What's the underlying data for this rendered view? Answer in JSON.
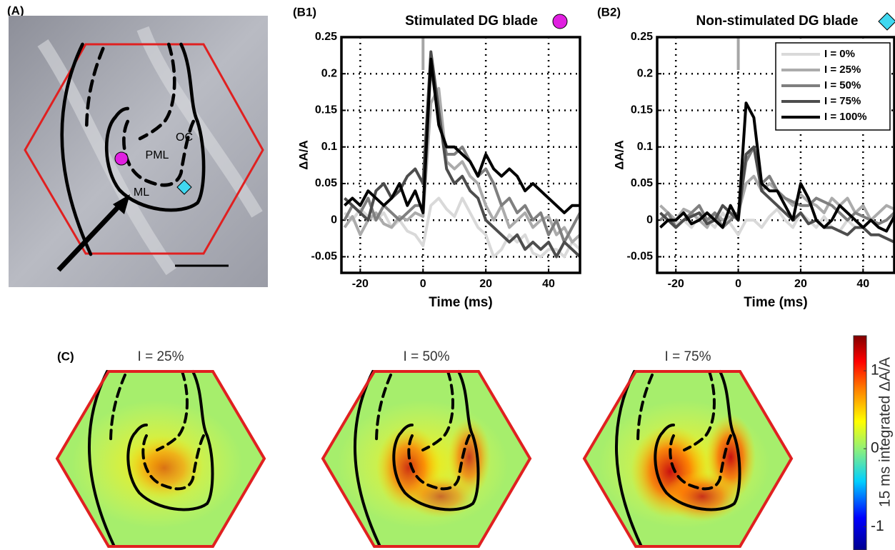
{
  "panel_a": {
    "label": "(A)",
    "annotations": [
      "OC",
      "PML",
      "ML"
    ]
  },
  "chart_data": [
    {
      "type": "line",
      "panel_label": "(B1)",
      "title": "Stimulated DG blade",
      "xlabel": "Time (ms)",
      "ylabel": "ΔA/A",
      "x": [
        -25,
        -22.5,
        -20,
        -17.5,
        -15,
        -12.5,
        -10,
        -7.5,
        -5,
        -2.5,
        0,
        2.5,
        5,
        7.5,
        10,
        12.5,
        15,
        17.5,
        20,
        22.5,
        25,
        27.5,
        30,
        32.5,
        35,
        37.5,
        40,
        42.5,
        45,
        47.5,
        50
      ],
      "series": [
        {
          "color": "#d9d9d9",
          "values": [
            0.01,
            0.0,
            0.015,
            0.005,
            0.0,
            0.01,
            -0.01,
            0.0,
            -0.015,
            -0.02,
            -0.035,
            0.02,
            0.03,
            0.015,
            0.005,
            0.03,
            0.01,
            -0.01,
            -0.02,
            -0.05,
            -0.04,
            -0.02,
            -0.03,
            -0.02,
            -0.045,
            -0.05,
            -0.04,
            -0.04,
            -0.05,
            -0.03,
            -0.04
          ]
        },
        {
          "color": "#ababab",
          "values": [
            -0.01,
            0.005,
            -0.02,
            0.0,
            0.01,
            -0.005,
            -0.01,
            0.005,
            0.0,
            0.01,
            0.005,
            0.16,
            0.18,
            0.08,
            0.07,
            0.08,
            0.06,
            0.05,
            0.02,
            0.0,
            0.02,
            -0.01,
            0.0,
            0.01,
            -0.01,
            0.0,
            0.005,
            -0.02,
            -0.01,
            -0.03,
            -0.02
          ]
        },
        {
          "color": "#7f7f7f",
          "values": [
            0.0,
            0.02,
            0.01,
            0.03,
            0.0,
            0.02,
            0.01,
            0.0,
            0.01,
            0.02,
            0.02,
            0.21,
            0.14,
            0.09,
            0.09,
            0.1,
            0.08,
            0.06,
            0.07,
            0.05,
            0.02,
            0.03,
            0.01,
            0.02,
            0.0,
            0.01,
            -0.02,
            0.0,
            -0.03,
            -0.01,
            0.01
          ]
        },
        {
          "color": "#4d4d4d",
          "values": [
            0.03,
            0.02,
            0.01,
            0.0,
            0.04,
            0.05,
            0.03,
            0.04,
            0.06,
            0.07,
            0.05,
            0.23,
            0.15,
            0.07,
            0.05,
            0.06,
            0.04,
            0.03,
            0.0,
            -0.01,
            -0.02,
            -0.03,
            -0.02,
            -0.04,
            -0.03,
            -0.04,
            -0.03,
            -0.05,
            -0.03,
            -0.04,
            -0.05
          ]
        },
        {
          "color": "#000000",
          "values": [
            0.02,
            0.03,
            0.02,
            0.04,
            0.03,
            0.02,
            0.03,
            0.05,
            0.02,
            0.04,
            0.01,
            0.22,
            0.13,
            0.1,
            0.1,
            0.09,
            0.08,
            0.06,
            0.09,
            0.07,
            0.06,
            0.07,
            0.06,
            0.04,
            0.05,
            0.04,
            0.03,
            0.02,
            0.01,
            0.02,
            0.02
          ]
        }
      ],
      "xlim": [
        -26,
        50
      ],
      "ylim": [
        -0.072,
        0.25
      ],
      "xticks": [
        -20,
        0,
        20,
        40
      ],
      "yticks": [
        -0.05,
        0,
        0.05,
        0.1,
        0.15,
        0.2,
        0.25
      ],
      "grid": true,
      "stimulus_x": 0,
      "legend": false
    },
    {
      "type": "line",
      "panel_label": "(B2)",
      "title": "Non-stimulated DG blade",
      "xlabel": "Time (ms)",
      "ylabel": "ΔA/A",
      "x": [
        -25,
        -22.5,
        -20,
        -17.5,
        -15,
        -12.5,
        -10,
        -7.5,
        -5,
        -2.5,
        0,
        2.5,
        5,
        7.5,
        10,
        12.5,
        15,
        17.5,
        20,
        22.5,
        25,
        27.5,
        30,
        32.5,
        35,
        37.5,
        40,
        42.5,
        45,
        47.5,
        50
      ],
      "series": [
        {
          "name": "I = 0%",
          "color": "#d9d9d9",
          "values": [
            0.0,
            0.01,
            -0.005,
            0.0,
            -0.01,
            0.005,
            0.0,
            -0.01,
            0.01,
            -0.005,
            -0.02,
            0.0,
            0.0,
            -0.01,
            0.005,
            0.015,
            0.0,
            -0.01,
            0.01,
            0.0,
            -0.01,
            0.005,
            -0.01,
            -0.015,
            0.0,
            -0.01,
            -0.01,
            0.0,
            -0.005,
            0.0,
            0.01
          ]
        },
        {
          "name": "I = 25%",
          "color": "#ababab",
          "values": [
            0.02,
            0.01,
            0.0,
            0.015,
            0.01,
            0.0,
            -0.01,
            0.01,
            0.0,
            0.005,
            0.01,
            0.05,
            0.06,
            0.04,
            0.05,
            0.04,
            0.03,
            0.02,
            0.035,
            0.025,
            0.02,
            0.01,
            0.03,
            0.02,
            0.03,
            0.01,
            0.02,
            0.0,
            0.01,
            0.02,
            0.015
          ]
        },
        {
          "name": "I = 50%",
          "color": "#7f7f7f",
          "values": [
            0.0,
            0.01,
            -0.01,
            0.0,
            0.01,
            0.02,
            0.0,
            0.01,
            -0.01,
            0.0,
            0.01,
            0.08,
            0.1,
            0.05,
            0.06,
            0.04,
            0.03,
            0.025,
            0.02,
            0.02,
            0.03,
            0.025,
            0.02,
            0.01,
            0.0,
            0.01,
            0.005,
            0.0,
            -0.005,
            0.0,
            0.01
          ]
        },
        {
          "name": "I = 75%",
          "color": "#4d4d4d",
          "values": [
            0.01,
            0.0,
            -0.01,
            0.0,
            0.005,
            0.01,
            -0.005,
            0.0,
            0.02,
            0.01,
            0.0,
            0.09,
            0.1,
            0.04,
            0.03,
            0.02,
            0.01,
            0.0,
            0.01,
            -0.005,
            0.0,
            -0.01,
            -0.01,
            -0.015,
            -0.02,
            -0.01,
            -0.01,
            -0.02,
            -0.02,
            -0.025,
            -0.03
          ]
        },
        {
          "name": "I = 100%",
          "color": "#000000",
          "values": [
            -0.01,
            0.0,
            0.0,
            0.01,
            -0.005,
            0.0,
            0.01,
            0.0,
            -0.01,
            0.02,
            0.0,
            0.16,
            0.14,
            0.05,
            0.04,
            0.04,
            0.02,
            0.0,
            0.05,
            0.03,
            0.0,
            -0.01,
            0.0,
            0.02,
            0.01,
            0.0,
            -0.01,
            0.0,
            -0.01,
            -0.015,
            0.005
          ]
        }
      ],
      "xlim": [
        -26,
        50
      ],
      "ylim": [
        -0.072,
        0.25
      ],
      "xticks": [
        -20,
        0,
        20,
        40
      ],
      "yticks": [
        -0.05,
        0,
        0.05,
        0.1,
        0.15,
        0.2,
        0.25
      ],
      "grid": true,
      "stimulus_x": 0,
      "legend": "upper right"
    }
  ],
  "panel_c": {
    "label": "(C)",
    "titles": [
      "I = 25%",
      "I = 50%",
      "I = 75%"
    ]
  },
  "colorbar": {
    "label": "15 ms integrated ΔA/A",
    "lim": [
      -1.3,
      1.45
    ],
    "ticks": [
      -1,
      0,
      1
    ]
  }
}
